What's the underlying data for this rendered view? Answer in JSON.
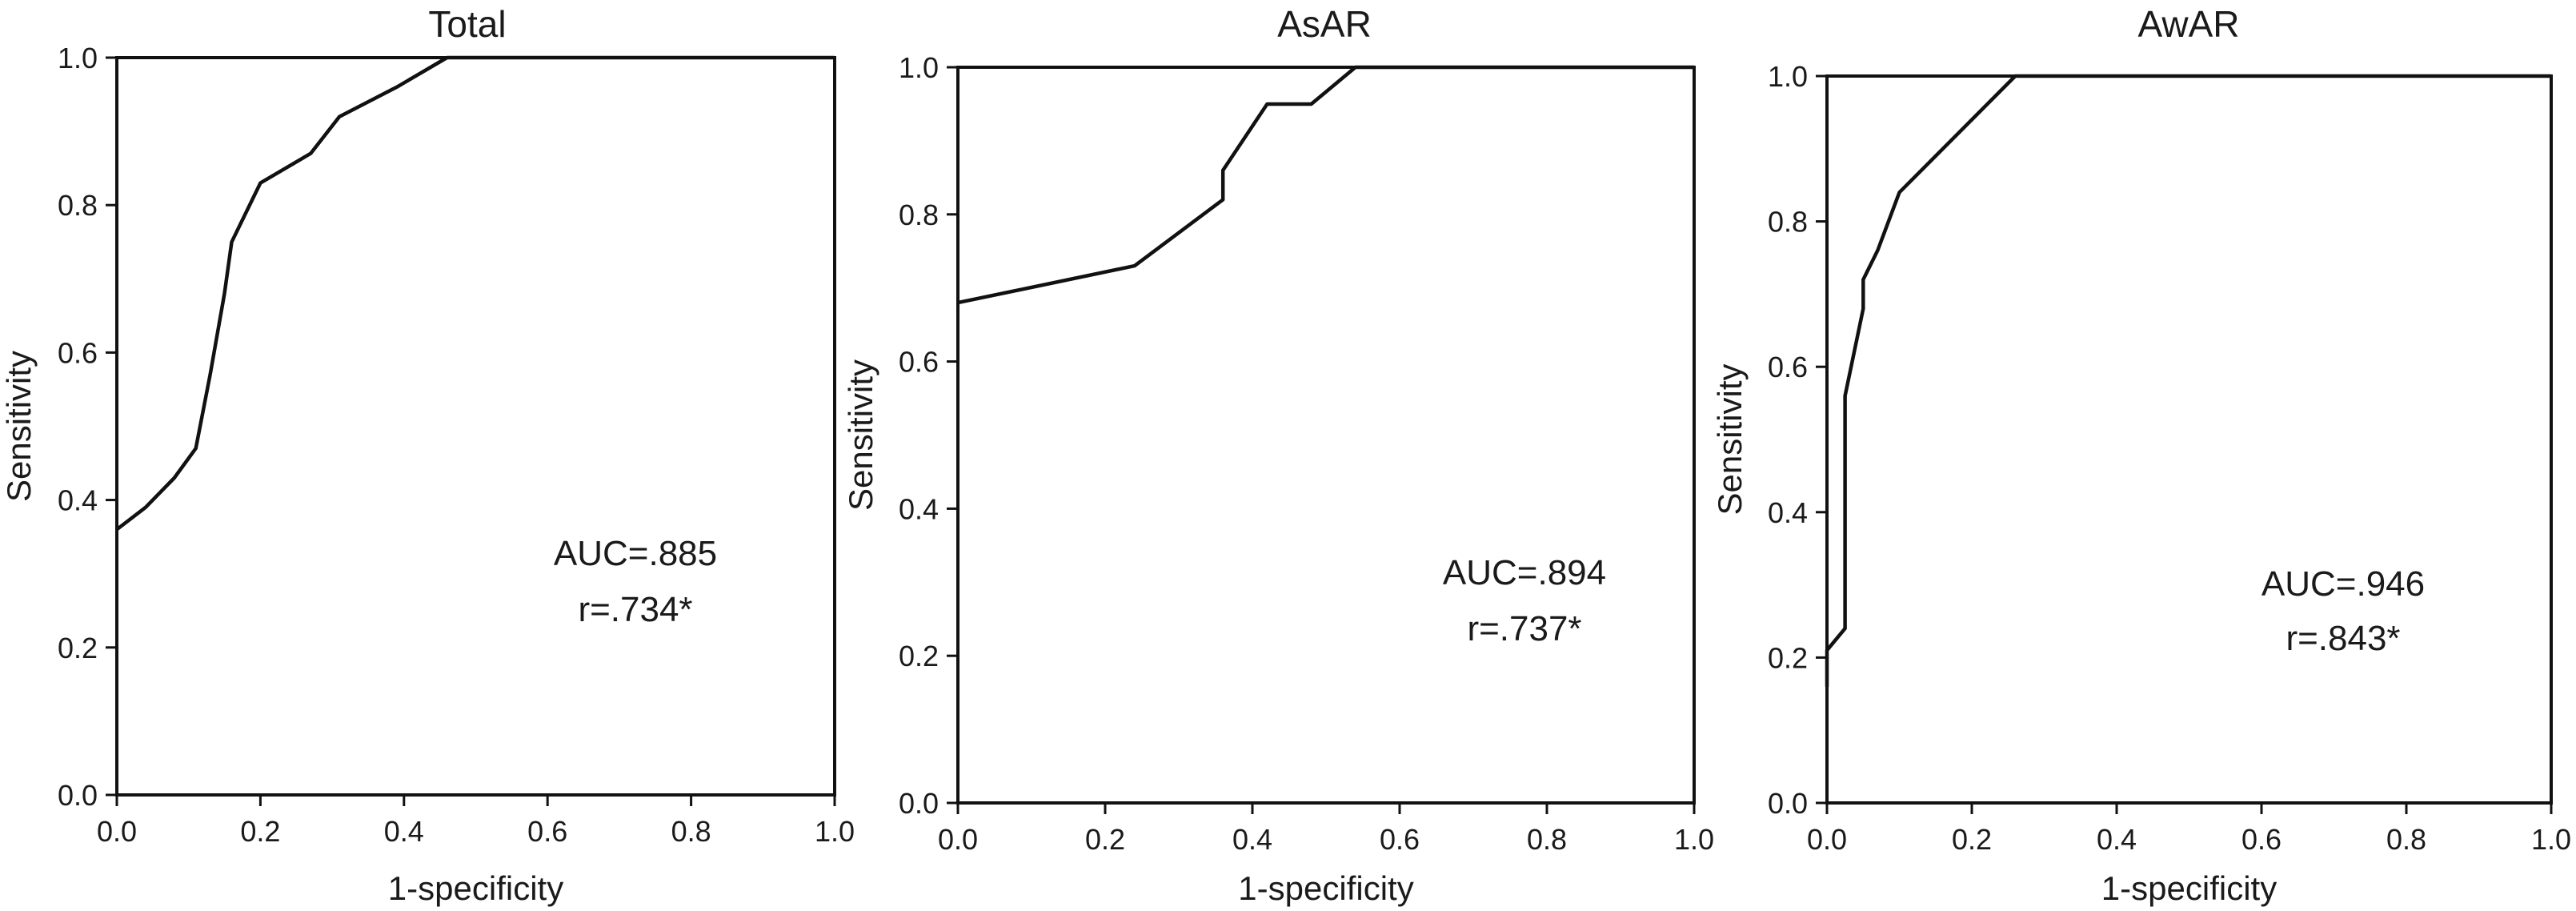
{
  "chart_data": [
    {
      "type": "line",
      "title": "Total",
      "xlabel": "1-specificity",
      "ylabel": "Sensitivity",
      "xlim": [
        0,
        1
      ],
      "ylim": [
        0,
        1
      ],
      "xticks": [
        "0.0",
        "0.2",
        "0.4",
        "0.6",
        "0.8",
        "1.0"
      ],
      "yticks": [
        "0.0",
        "0.2",
        "0.4",
        "0.6",
        "0.8",
        "1.0"
      ],
      "grid": false,
      "annotations": [
        "AUC=.885",
        "r=.734*"
      ],
      "x": [
        0.0,
        0.04,
        0.08,
        0.11,
        0.13,
        0.15,
        0.16,
        0.2,
        0.27,
        0.31,
        0.39,
        0.46,
        1.0
      ],
      "y": [
        0.36,
        0.39,
        0.43,
        0.47,
        0.57,
        0.68,
        0.75,
        0.83,
        0.87,
        0.92,
        0.96,
        1.0,
        1.0
      ]
    },
    {
      "type": "line",
      "title": "AsAR",
      "xlabel": "1-specificity",
      "ylabel": "Sensitivity",
      "xlim": [
        0,
        1
      ],
      "ylim": [
        0,
        1
      ],
      "xticks": [
        "0.0",
        "0.2",
        "0.4",
        "0.6",
        "0.8",
        "1.0"
      ],
      "yticks": [
        "0.0",
        "0.2",
        "0.4",
        "0.6",
        "0.8",
        "1.0"
      ],
      "grid": false,
      "annotations": [
        "AUC=.894",
        "r=.737*"
      ],
      "x": [
        0.0,
        0.24,
        0.36,
        0.36,
        0.42,
        0.48,
        0.54,
        1.0
      ],
      "y": [
        0.68,
        0.73,
        0.82,
        0.86,
        0.95,
        0.95,
        1.0,
        1.0
      ]
    },
    {
      "type": "line",
      "title": "AwAR",
      "xlabel": "1-specificity",
      "ylabel": "Sensitivity",
      "xlim": [
        0,
        1
      ],
      "ylim": [
        0,
        1
      ],
      "xticks": [
        "0.0",
        "0.2",
        "0.4",
        "0.6",
        "0.8",
        "1.0"
      ],
      "yticks": [
        "0.0",
        "0.2",
        "0.4",
        "0.6",
        "0.8",
        "1.0"
      ],
      "grid": false,
      "annotations": [
        "AUC=.946",
        "r=.843*"
      ],
      "x": [
        0.0,
        0.0,
        0.025,
        0.025,
        0.05,
        0.05,
        0.07,
        0.1,
        0.26,
        1.0
      ],
      "y": [
        0.16,
        0.21,
        0.24,
        0.56,
        0.68,
        0.72,
        0.76,
        0.84,
        1.0,
        1.0
      ]
    }
  ]
}
